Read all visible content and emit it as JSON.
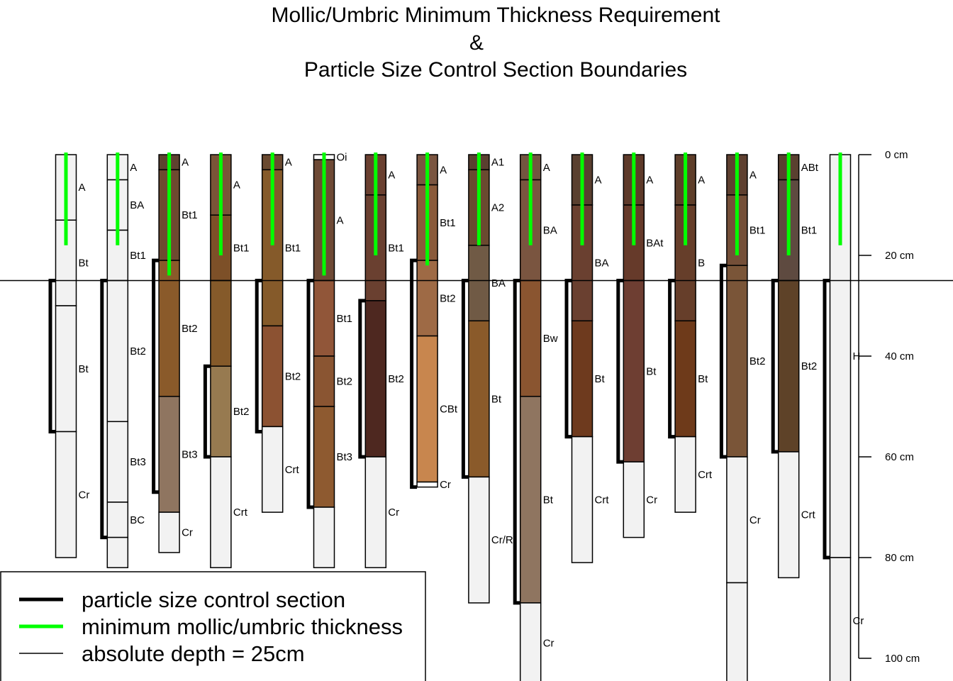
{
  "chart_data": {
    "type": "soil-profile-sketch",
    "title": [
      "Mollic/Umbric Minimum Thickness Requirement",
      "&",
      "Particle Size Control Section Boundaries"
    ],
    "ylim": [
      0,
      105
    ],
    "y_ticks": [
      0,
      20,
      40,
      60,
      80,
      100
    ],
    "y_tick_unit": "cm",
    "reference_depth": 25,
    "legend": {
      "placement": "bottom-left",
      "items": [
        {
          "label": "particle size control section",
          "color": "#000000"
        },
        {
          "label": "minimum mollic/umbric thickness",
          "color": "#00ff00"
        },
        {
          "label": "absolute depth = 25cm",
          "color": "#000000"
        }
      ]
    },
    "colors": {
      "psc": "#000000",
      "mollic": "#00ff00",
      "reference": "#000000",
      "outline": "#000000",
      "light": "#f2f2f2"
    },
    "profiles": [
      {
        "horizons": [
          {
            "name": "A",
            "top": 0,
            "bottom": 13,
            "color": "#f2f2f2"
          },
          {
            "name": "Bt",
            "top": 13,
            "bottom": 30,
            "color": "#f2f2f2"
          },
          {
            "name": "Bt",
            "top": 30,
            "bottom": 55,
            "color": "#f2f2f2"
          },
          {
            "name": "Cr",
            "top": 55,
            "bottom": 80,
            "color": "#f2f2f2"
          }
        ],
        "psc": [
          25,
          55
        ],
        "mollic": 18
      },
      {
        "horizons": [
          {
            "name": "A",
            "top": 0,
            "bottom": 5,
            "color": "#f2f2f2"
          },
          {
            "name": "BA",
            "top": 5,
            "bottom": 15,
            "color": "#f2f2f2"
          },
          {
            "name": "Bt1",
            "top": 15,
            "bottom": 25,
            "color": "#f2f2f2"
          },
          {
            "name": "Bt2",
            "top": 25,
            "bottom": 53,
            "color": "#f2f2f2"
          },
          {
            "name": "Bt3",
            "top": 53,
            "bottom": 69,
            "color": "#f2f2f2"
          },
          {
            "name": "BC",
            "top": 69,
            "bottom": 76,
            "color": "#f2f2f2"
          },
          {
            "name": "",
            "top": 76,
            "bottom": 82,
            "color": "#f2f2f2"
          }
        ],
        "psc": [
          25,
          76
        ],
        "mollic": 18
      },
      {
        "horizons": [
          {
            "name": "A",
            "top": 0,
            "bottom": 3,
            "color": "#5e4230"
          },
          {
            "name": "Bt1",
            "top": 3,
            "bottom": 21,
            "color": "#6e4a30"
          },
          {
            "name": "Bt2",
            "top": 21,
            "bottom": 48,
            "color": "#8a5a2a"
          },
          {
            "name": "Bt3",
            "top": 48,
            "bottom": 71,
            "color": "#8f7560"
          },
          {
            "name": "Cr",
            "top": 71,
            "bottom": 79,
            "color": "#f2f2f2"
          }
        ],
        "psc": [
          21,
          67
        ],
        "mollic": 24
      },
      {
        "horizons": [
          {
            "name": "A",
            "top": 0,
            "bottom": 12,
            "color": "#7a5538"
          },
          {
            "name": "Bt1",
            "top": 12,
            "bottom": 25,
            "color": "#7d5028"
          },
          {
            "name": "",
            "top": 25,
            "bottom": 42,
            "color": "#855a2a"
          },
          {
            "name": "Bt2",
            "top": 42,
            "bottom": 60,
            "color": "#977a50"
          },
          {
            "name": "Crt",
            "top": 60,
            "bottom": 82,
            "color": "#f2f2f2"
          }
        ],
        "psc": [
          42,
          60
        ],
        "mollic": 20
      },
      {
        "horizons": [
          {
            "name": "A",
            "top": 0,
            "bottom": 3,
            "color": "#6a4a30"
          },
          {
            "name": "Bt1",
            "top": 3,
            "bottom": 34,
            "color": "#855a2a"
          },
          {
            "name": "Bt2",
            "top": 34,
            "bottom": 54,
            "color": "#8c5232"
          },
          {
            "name": "Crt",
            "top": 54,
            "bottom": 71,
            "color": "#f2f2f2"
          }
        ],
        "psc": [
          25,
          55
        ],
        "mollic": 18
      },
      {
        "horizons": [
          {
            "name": "Oi",
            "top": 0,
            "bottom": 1,
            "color": "#ffffff"
          },
          {
            "name": "A",
            "top": 1,
            "bottom": 25,
            "color": "#6e4a36"
          },
          {
            "name": "Bt1",
            "top": 25,
            "bottom": 40,
            "color": "#915639"
          },
          {
            "name": "Bt2",
            "top": 40,
            "bottom": 50,
            "color": "#8a5532"
          },
          {
            "name": "Bt3",
            "top": 50,
            "bottom": 70,
            "color": "#8e5a30"
          },
          {
            "name": "",
            "top": 70,
            "bottom": 82,
            "color": "#f2f2f2"
          }
        ],
        "psc": [
          25,
          70
        ],
        "mollic": 24
      },
      {
        "horizons": [
          {
            "name": "A",
            "top": 0,
            "bottom": 8,
            "color": "#6a4030"
          },
          {
            "name": "Bt1",
            "top": 8,
            "bottom": 29,
            "color": "#6a4030"
          },
          {
            "name": "Bt2",
            "top": 29,
            "bottom": 60,
            "color": "#4e2820"
          },
          {
            "name": "Cr",
            "top": 60,
            "bottom": 82,
            "color": "#f2f2f2"
          }
        ],
        "psc": [
          29,
          60
        ],
        "mollic": 20
      },
      {
        "horizons": [
          {
            "name": "A",
            "top": 0,
            "bottom": 6,
            "color": "#7a5540"
          },
          {
            "name": "Bt1",
            "top": 6,
            "bottom": 21,
            "color": "#8a5a3a"
          },
          {
            "name": "Bt2",
            "top": 21,
            "bottom": 36,
            "color": "#9e6a45"
          },
          {
            "name": "CBt",
            "top": 36,
            "bottom": 65,
            "color": "#c8864e"
          },
          {
            "name": "Cr",
            "top": 65,
            "bottom": 66,
            "color": "#ffffff"
          }
        ],
        "psc": [
          21,
          66
        ],
        "mollic": 22
      },
      {
        "horizons": [
          {
            "name": "A1",
            "top": 0,
            "bottom": 3,
            "color": "#5a4030"
          },
          {
            "name": "A2",
            "top": 3,
            "bottom": 18,
            "color": "#6a4a30"
          },
          {
            "name": "BA",
            "top": 18,
            "bottom": 33,
            "color": "#705a45"
          },
          {
            "name": "Bt",
            "top": 33,
            "bottom": 64,
            "color": "#8a5a2a"
          },
          {
            "name": "Cr/R",
            "top": 64,
            "bottom": 89,
            "color": "#f2f2f2"
          }
        ],
        "psc": [
          25,
          64
        ],
        "mollic": 18
      },
      {
        "horizons": [
          {
            "name": "A",
            "top": 0,
            "bottom": 5,
            "color": "#735540"
          },
          {
            "name": "BA",
            "top": 5,
            "bottom": 25,
            "color": "#7a5540"
          },
          {
            "name": "Bw",
            "top": 25,
            "bottom": 48,
            "color": "#8a5530"
          },
          {
            "name": "Bt",
            "top": 48,
            "bottom": 89,
            "color": "#8f7560"
          },
          {
            "name": "Cr",
            "top": 89,
            "bottom": 105,
            "color": "#f2f2f2"
          }
        ],
        "psc": [
          25,
          89
        ],
        "mollic": 18
      },
      {
        "horizons": [
          {
            "name": "A",
            "top": 0,
            "bottom": 10,
            "color": "#5a4030"
          },
          {
            "name": "BA",
            "top": 10,
            "bottom": 33,
            "color": "#6a4030"
          },
          {
            "name": "Bt",
            "top": 33,
            "bottom": 56,
            "color": "#6e3a1e"
          },
          {
            "name": "Crt",
            "top": 56,
            "bottom": 81,
            "color": "#f2f2f2"
          }
        ],
        "psc": [
          25,
          56
        ],
        "mollic": 18
      },
      {
        "horizons": [
          {
            "name": "A",
            "top": 0,
            "bottom": 10,
            "color": "#5e3a2a"
          },
          {
            "name": "BAt",
            "top": 10,
            "bottom": 25,
            "color": "#663a2a"
          },
          {
            "name": "Bt",
            "top": 25,
            "bottom": 61,
            "color": "#6e3e32"
          },
          {
            "name": "Cr",
            "top": 61,
            "bottom": 76,
            "color": "#f2f2f2"
          }
        ],
        "psc": [
          25,
          61
        ],
        "mollic": 18
      },
      {
        "horizons": [
          {
            "name": "A",
            "top": 0,
            "bottom": 10,
            "color": "#5e3e2a"
          },
          {
            "name": "B",
            "top": 10,
            "bottom": 33,
            "color": "#663e2a"
          },
          {
            "name": "Bt",
            "top": 33,
            "bottom": 56,
            "color": "#6e3a1a"
          },
          {
            "name": "Crt",
            "top": 56,
            "bottom": 71,
            "color": "#f2f2f2"
          }
        ],
        "psc": [
          25,
          56
        ],
        "mollic": 18
      },
      {
        "horizons": [
          {
            "name": "A",
            "top": 0,
            "bottom": 8,
            "color": "#5e4030"
          },
          {
            "name": "Bt1",
            "top": 8,
            "bottom": 22,
            "color": "#744f38"
          },
          {
            "name": "Bt2",
            "top": 22,
            "bottom": 60,
            "color": "#7a5538"
          },
          {
            "name": "Cr",
            "top": 60,
            "bottom": 85,
            "color": "#f2f2f2"
          },
          {
            "name": "",
            "top": 85,
            "bottom": 105,
            "color": "#f2f2f2"
          }
        ],
        "psc": [
          22,
          60
        ],
        "mollic": 20
      },
      {
        "horizons": [
          {
            "name": "ABt",
            "top": 0,
            "bottom": 5,
            "color": "#5a4030"
          },
          {
            "name": "Bt1",
            "top": 5,
            "bottom": 25,
            "color": "#5e4a40"
          },
          {
            "name": "Bt2",
            "top": 25,
            "bottom": 59,
            "color": "#5e4228"
          },
          {
            "name": "Crt",
            "top": 59,
            "bottom": 84,
            "color": "#f2f2f2"
          }
        ],
        "psc": [
          25,
          59
        ],
        "mollic": 20
      },
      {
        "horizons": [
          {
            "name": "H",
            "top": 0,
            "bottom": 80,
            "color": "#f2f2f2"
          },
          {
            "name": "Cr",
            "top": 80,
            "bottom": 105,
            "color": "#f2f2f2"
          }
        ],
        "psc": [
          25,
          80
        ],
        "mollic": 18
      }
    ]
  }
}
